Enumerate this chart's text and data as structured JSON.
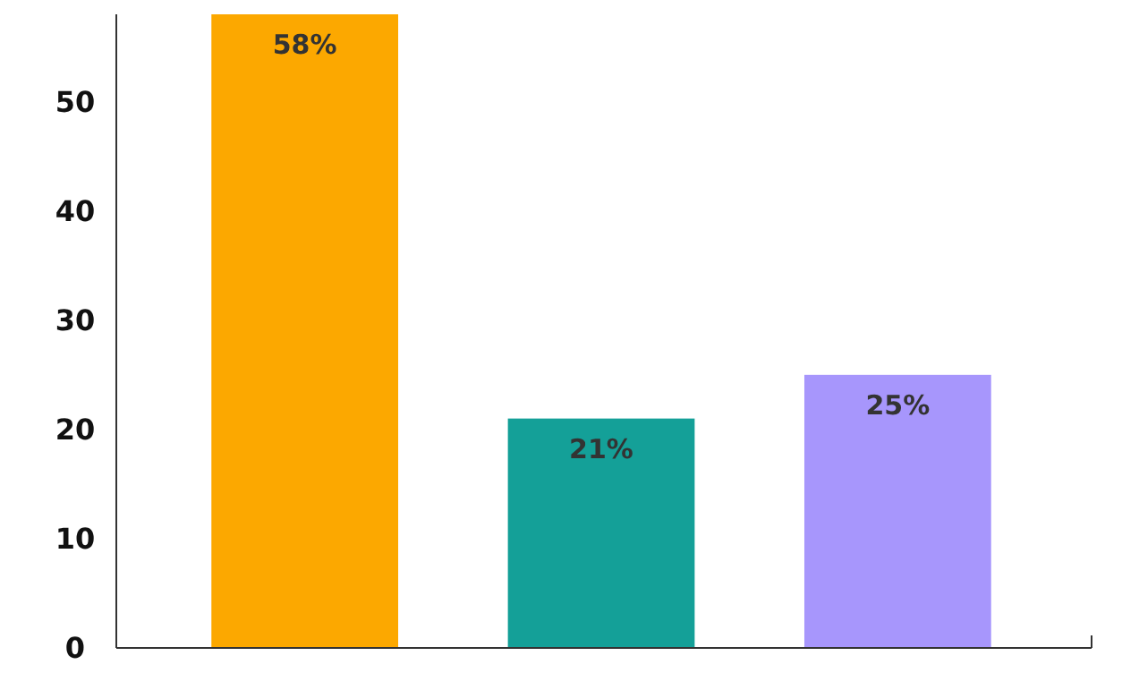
{
  "chart_data": {
    "type": "bar",
    "categories": [
      null,
      null,
      null
    ],
    "values": [
      58,
      21,
      25
    ],
    "colors": [
      "#fca800",
      "#14a098",
      "#a796fc"
    ],
    "value_labels": [
      "58%",
      "21%",
      "25%"
    ],
    "ylim": [
      0,
      58
    ],
    "yticks": [
      0,
      10,
      20,
      30,
      40,
      50
    ],
    "grid": false
  }
}
